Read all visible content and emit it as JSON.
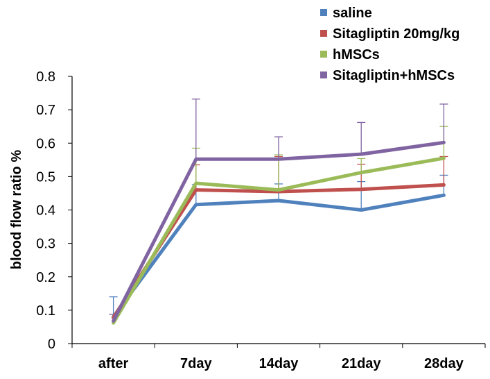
{
  "chart_data": {
    "type": "line",
    "categories": [
      "after",
      "7day",
      "14day",
      "21day",
      "28day"
    ],
    "ylabel": "blood flow ratio %",
    "ylim": [
      0,
      0.8
    ],
    "yticks": [
      "0",
      "0.1",
      "0.2",
      "0.3",
      "0.4",
      "0.5",
      "0.6",
      "0.7",
      "0.8"
    ],
    "grid": false,
    "legend_position": "top-right",
    "error_bars": "upper",
    "series": [
      {
        "name": "saline",
        "color": "#4F81BD",
        "values": [
          0.08,
          0.416,
          0.428,
          0.4,
          0.444
        ],
        "errors": [
          0.06,
          0.06,
          0.05,
          0.085,
          0.06
        ]
      },
      {
        "name": "Sitagliptin 20mg/kg",
        "color": "#C0504D",
        "values": [
          0.078,
          0.46,
          0.455,
          0.462,
          0.475
        ],
        "errors": [
          0.01,
          0.075,
          0.105,
          0.075,
          0.085
        ]
      },
      {
        "name": "hMSCs",
        "color": "#9BBB59",
        "values": [
          0.062,
          0.48,
          0.46,
          0.512,
          0.555
        ],
        "errors": [
          0.0,
          0.105,
          0.105,
          0.042,
          0.095
        ]
      },
      {
        "name": "Sitagliptin+hMSCs",
        "color": "#8064A2",
        "values": [
          0.068,
          0.552,
          0.552,
          0.567,
          0.602
        ],
        "errors": [
          0.02,
          0.18,
          0.067,
          0.095,
          0.115
        ]
      }
    ]
  }
}
